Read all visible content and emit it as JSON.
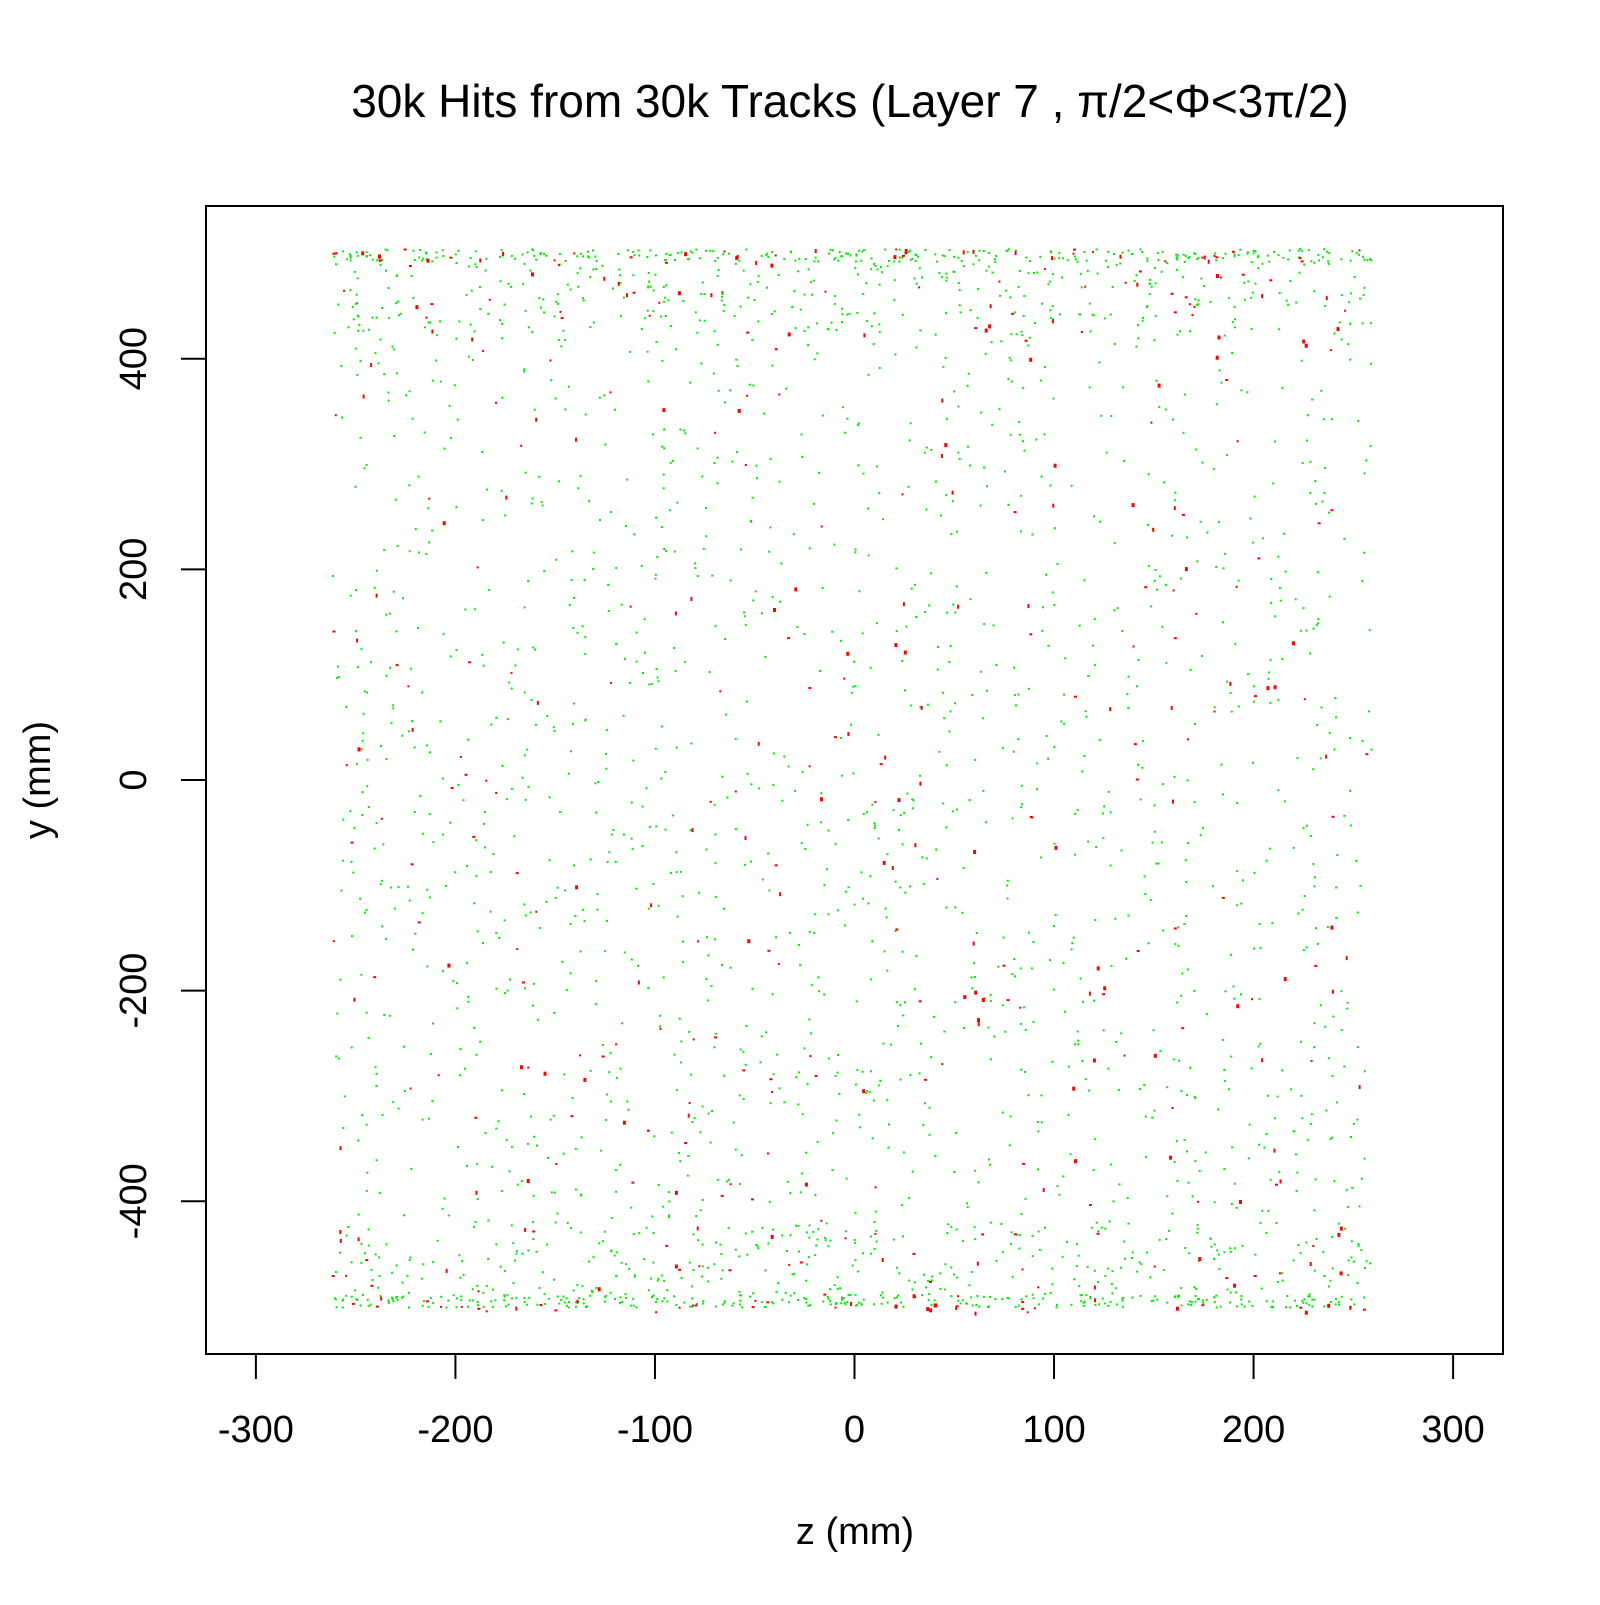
{
  "chart_data": {
    "type": "scatter",
    "title": "30k Hits from 30k Tracks (Layer 7 , π/2<Φ<3π/2)",
    "xlabel": "z (mm)",
    "ylabel": "y (mm)",
    "xlim": [
      -325,
      325
    ],
    "ylim": [
      -545,
      545
    ],
    "xticks": [
      -300,
      -200,
      -100,
      0,
      100,
      200,
      300
    ],
    "yticks": [
      -400,
      -200,
      0,
      200,
      400
    ],
    "grid": false,
    "legend": "none",
    "point_shape": "square",
    "series": [
      {
        "color": "#00ee00",
        "z_range": [
          -262,
          260
        ],
        "y_range": [
          -500,
          505
        ],
        "point_count": 2600,
        "points": [
          [
            -250,
            502
          ],
          [
            -245,
            498
          ],
          [
            -238,
            490
          ],
          [
            -210,
            497
          ],
          [
            -190,
            488
          ],
          [
            -160,
            495
          ],
          [
            -130,
            486
          ],
          [
            -100,
            499
          ],
          [
            -60,
            491
          ],
          [
            -20,
            497
          ],
          [
            10,
            489
          ],
          [
            40,
            500
          ],
          [
            70,
            493
          ],
          [
            110,
            498
          ],
          [
            150,
            487
          ],
          [
            190,
            500
          ],
          [
            230,
            492
          ],
          [
            255,
            495
          ],
          [
            -240,
            440
          ],
          [
            -200,
            420
          ],
          [
            -150,
            455
          ],
          [
            -90,
            410
          ],
          [
            -30,
            430
          ],
          [
            20,
            405
          ],
          [
            80,
            445
          ],
          [
            130,
            415
          ],
          [
            190,
            450
          ],
          [
            240,
            425
          ],
          [
            -248,
            -498
          ],
          [
            -232,
            -492
          ],
          [
            -205,
            -500
          ],
          [
            -176,
            -488
          ],
          [
            -140,
            -495
          ],
          [
            -102,
            -490
          ],
          [
            -70,
            -499
          ],
          [
            -35,
            -486
          ],
          [
            -5,
            -497
          ],
          [
            30,
            -490
          ],
          [
            62,
            -499
          ],
          [
            95,
            -487
          ],
          [
            125,
            -496
          ],
          [
            160,
            -490
          ],
          [
            195,
            -499
          ],
          [
            225,
            -492
          ],
          [
            250,
            -497
          ],
          [
            -230,
            -460
          ],
          [
            -180,
            -440
          ],
          [
            -120,
            -470
          ],
          [
            -60,
            -445
          ],
          [
            0,
            -455
          ],
          [
            60,
            -435
          ],
          [
            120,
            -465
          ],
          [
            180,
            -440
          ],
          [
            235,
            -470
          ],
          [
            -245,
            300
          ],
          [
            -200,
            260
          ],
          [
            -150,
            210
          ],
          [
            -100,
            250
          ],
          [
            -50,
            180
          ],
          [
            0,
            220
          ],
          [
            50,
            160
          ],
          [
            100,
            240
          ],
          [
            150,
            190
          ],
          [
            200,
            270
          ],
          [
            245,
            230
          ],
          [
            -235,
            100
          ],
          [
            -180,
            60
          ],
          [
            -120,
            130
          ],
          [
            -60,
            40
          ],
          [
            0,
            90
          ],
          [
            60,
            20
          ],
          [
            120,
            110
          ],
          [
            180,
            70
          ],
          [
            240,
            30
          ],
          [
            -240,
            -40
          ],
          [
            -190,
            -90
          ],
          [
            -130,
            -30
          ],
          [
            -70,
            -110
          ],
          [
            -10,
            -60
          ],
          [
            50,
            -120
          ],
          [
            110,
            -70
          ],
          [
            170,
            -20
          ],
          [
            230,
            -100
          ],
          [
            -245,
            -220
          ],
          [
            -190,
            -260
          ],
          [
            -130,
            -190
          ],
          [
            -70,
            -240
          ],
          [
            -10,
            -280
          ],
          [
            50,
            -210
          ],
          [
            110,
            -250
          ],
          [
            170,
            -300
          ],
          [
            230,
            -230
          ],
          [
            -240,
            -360
          ],
          [
            -180,
            -330
          ],
          [
            -120,
            -390
          ],
          [
            -60,
            -350
          ],
          [
            0,
            -410
          ],
          [
            60,
            -370
          ],
          [
            120,
            -340
          ],
          [
            180,
            -400
          ],
          [
            240,
            -380
          ]
        ]
      },
      {
        "color": "#ff0000",
        "z_range": [
          -262,
          258
        ],
        "y_range": [
          -505,
          505
        ],
        "point_count": 420,
        "points": [
          [
            -203,
            497
          ],
          [
            -95,
            492
          ],
          [
            -40,
            499
          ],
          [
            25,
            501
          ],
          [
            95,
            486
          ],
          [
            175,
            498
          ],
          [
            -215,
            440
          ],
          [
            -40,
            410
          ],
          [
            60,
            430
          ],
          [
            160,
            445
          ],
          [
            -175,
            270
          ],
          [
            -55,
            300
          ],
          [
            45,
            320
          ],
          [
            160,
            260
          ],
          [
            -230,
            110
          ],
          [
            -90,
            160
          ],
          [
            20,
            130
          ],
          [
            110,
            80
          ],
          [
            210,
            90
          ],
          [
            -255,
            15
          ],
          [
            -60,
            -10
          ],
          [
            10,
            -20
          ],
          [
            140,
            35
          ],
          [
            -140,
            -100
          ],
          [
            -40,
            -80
          ],
          [
            30,
            -60
          ],
          [
            160,
            -140
          ],
          [
            -120,
            -250
          ],
          [
            -20,
            -280
          ],
          [
            60,
            -200
          ],
          [
            150,
            -260
          ],
          [
            -190,
            -390
          ],
          [
            -90,
            -390
          ],
          [
            10,
            -430
          ],
          [
            110,
            -360
          ],
          [
            210,
            -350
          ],
          [
            -262,
            -470
          ],
          [
            -170,
            -500
          ],
          [
            -90,
            -460
          ],
          [
            -10,
            -500
          ],
          [
            40,
            -497
          ],
          [
            120,
            -480
          ],
          [
            200,
            -470
          ],
          [
            242,
            -430
          ]
        ]
      }
    ]
  }
}
